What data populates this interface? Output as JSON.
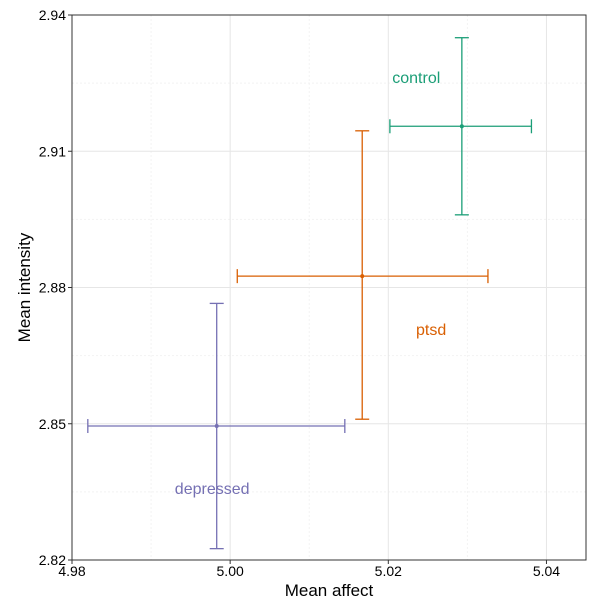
{
  "chart_data": {
    "type": "scatter",
    "xlabel": "Mean affect",
    "ylabel": "Mean intensity",
    "xlim": [
      4.98,
      5.045
    ],
    "ylim": [
      2.82,
      2.94
    ],
    "xticks": [
      4.98,
      5.0,
      5.02,
      5.04
    ],
    "xtick_labels": [
      "4.98",
      "5.00",
      "5.02",
      "5.04"
    ],
    "yticks": [
      2.82,
      2.85,
      2.88,
      2.91,
      2.94
    ],
    "ytick_labels": [
      "2.82",
      "2.85",
      "2.88",
      "2.91",
      "2.94"
    ],
    "grid": true,
    "points": [
      {
        "label": "control",
        "color": "#1b9e77",
        "x": 5.0293,
        "x_low": 5.0202,
        "x_high": 5.0381,
        "y": 2.9155,
        "y_low": 2.896,
        "y_high": 2.935,
        "label_x": 5.0205,
        "label_y": 2.925
      },
      {
        "label": "ptsd",
        "color": "#d95f02",
        "x": 5.0167,
        "x_low": 5.0009,
        "x_high": 5.0326,
        "y": 2.8825,
        "y_low": 2.851,
        "y_high": 2.9145,
        "label_x": 5.0235,
        "label_y": 2.8695
      },
      {
        "label": "depressed",
        "color": "#7570b3",
        "x": 4.9983,
        "x_low": 4.982,
        "x_high": 5.0145,
        "y": 2.8495,
        "y_low": 2.8225,
        "y_high": 2.8765,
        "label_x": 4.993,
        "label_y": 2.8345
      }
    ]
  }
}
